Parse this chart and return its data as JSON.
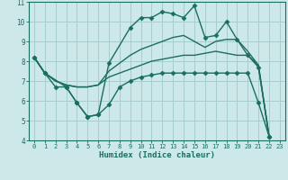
{
  "xlabel": "Humidex (Indice chaleur)",
  "bg_color": "#cce8e8",
  "grid_color": "#a8cccc",
  "line_color": "#1a6e60",
  "xlim": [
    -0.5,
    23.5
  ],
  "ylim": [
    4,
    11
  ],
  "yticks": [
    4,
    5,
    6,
    7,
    8,
    9,
    10,
    11
  ],
  "xticks": [
    0,
    1,
    2,
    3,
    4,
    5,
    6,
    7,
    8,
    9,
    10,
    11,
    12,
    13,
    14,
    15,
    16,
    17,
    18,
    19,
    20,
    21,
    22,
    23
  ],
  "line_peak_x": [
    0,
    1,
    3,
    4,
    5,
    6,
    7,
    9,
    10,
    11,
    12,
    13,
    14,
    15,
    16,
    17,
    18,
    19,
    20,
    21,
    22
  ],
  "line_peak_y": [
    8.2,
    7.4,
    6.7,
    5.9,
    5.2,
    5.3,
    7.9,
    9.7,
    10.2,
    10.2,
    10.5,
    10.4,
    10.2,
    10.8,
    9.2,
    9.3,
    10.0,
    9.1,
    8.3,
    7.7,
    4.2
  ],
  "line_upper_x": [
    0,
    1,
    2,
    3,
    4,
    5,
    6,
    7,
    8,
    9,
    10,
    11,
    12,
    13,
    14,
    15,
    16,
    17,
    18,
    19,
    20,
    21,
    22
  ],
  "line_upper_y": [
    8.2,
    7.4,
    7.0,
    6.8,
    6.7,
    6.7,
    6.8,
    7.5,
    7.9,
    8.3,
    8.6,
    8.8,
    9.0,
    9.2,
    9.3,
    9.0,
    8.7,
    9.0,
    9.1,
    9.1,
    8.5,
    7.8,
    4.2
  ],
  "line_lower_x": [
    0,
    1,
    2,
    3,
    4,
    5,
    6,
    7,
    8,
    9,
    10,
    11,
    12,
    13,
    14,
    15,
    16,
    17,
    18,
    19,
    20,
    21,
    22
  ],
  "line_lower_y": [
    8.2,
    7.4,
    7.0,
    6.8,
    6.7,
    6.7,
    6.8,
    7.2,
    7.4,
    7.6,
    7.8,
    8.0,
    8.1,
    8.2,
    8.3,
    8.3,
    8.4,
    8.5,
    8.4,
    8.3,
    8.3,
    7.8,
    4.2
  ],
  "line_min_x": [
    0,
    1,
    2,
    3,
    4,
    5,
    6,
    7,
    8,
    9,
    10,
    11,
    12,
    13,
    14,
    15,
    16,
    17,
    18,
    19,
    20,
    21,
    22
  ],
  "line_min_y": [
    8.2,
    7.4,
    6.7,
    6.7,
    5.9,
    5.2,
    5.3,
    5.8,
    6.7,
    7.0,
    7.2,
    7.3,
    7.4,
    7.4,
    7.4,
    7.4,
    7.4,
    7.4,
    7.4,
    7.4,
    7.4,
    5.9,
    4.2
  ]
}
